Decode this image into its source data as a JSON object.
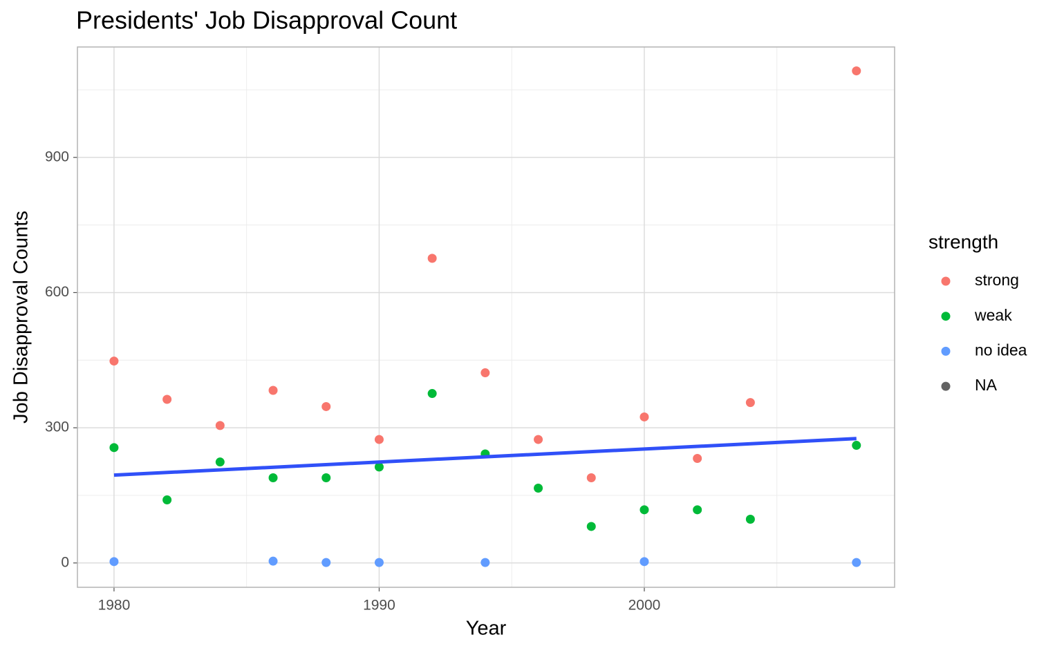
{
  "chart_data": {
    "type": "scatter",
    "title": "Presidents' Job Disapproval Count",
    "x_label": "Year",
    "y_label": "Job Disapproval Counts",
    "legend_title": "strength",
    "legend": "right",
    "grid": true,
    "xlim": [
      1978.62,
      2009.44
    ],
    "ylim": [
      -54,
      1145
    ],
    "xticks": [
      1980,
      1990,
      2000
    ],
    "yticks": [
      0,
      300,
      600,
      900
    ],
    "xminor": [
      1985,
      1995,
      2005
    ],
    "yminor": [
      150,
      450,
      750,
      1050
    ],
    "series": [
      {
        "name": "strong",
        "color": "#F8766D",
        "x": [
          1980,
          1982,
          1984,
          1986,
          1988,
          1990,
          1992,
          1994,
          1996,
          1998,
          2000,
          2002,
          2004,
          2008
        ],
        "values": [
          448,
          363,
          305,
          383,
          347,
          274,
          676,
          422,
          274,
          189,
          324,
          232,
          356,
          1092
        ]
      },
      {
        "name": "weak",
        "color": "#00BA38",
        "x": [
          1980,
          1982,
          1984,
          1986,
          1988,
          1990,
          1992,
          1994,
          1996,
          1998,
          2000,
          2002,
          2004,
          2008
        ],
        "values": [
          256,
          140,
          224,
          189,
          189,
          213,
          376,
          242,
          166,
          81,
          118,
          118,
          97,
          261
        ]
      },
      {
        "name": "no idea",
        "color": "#619CFF",
        "x": [
          1980,
          1986,
          1988,
          1990,
          1994,
          2000,
          2008
        ],
        "values": [
          3,
          4,
          1,
          1,
          1,
          3,
          1
        ]
      },
      {
        "name": "NA",
        "color": "#636363",
        "x": [],
        "values": []
      }
    ],
    "trend_line": {
      "color": "#3050F8",
      "x": [
        1980,
        2008
      ],
      "values": [
        195,
        276
      ]
    }
  }
}
